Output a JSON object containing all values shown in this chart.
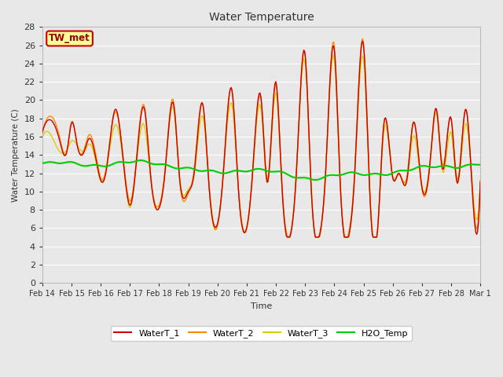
{
  "title": "Water Temperature",
  "ylabel": "Water Temperature (C)",
  "xlabel": "Time",
  "ylim": [
    0,
    28
  ],
  "yticks": [
    0,
    2,
    4,
    6,
    8,
    10,
    12,
    14,
    16,
    18,
    20,
    22,
    24,
    26,
    28
  ],
  "plot_background": "#e8e8e8",
  "grid_color": "#ffffff",
  "annotation_text": "TW_met",
  "annotation_bg": "#ffff99",
  "annotation_fg": "#990000",
  "annotation_edge": "#cc0000",
  "line_colors": {
    "WaterT_1": "#cc0000",
    "WaterT_2": "#ff8800",
    "WaterT_3": "#ddcc00",
    "H2O_Temp": "#00cc00"
  },
  "legend_entries": [
    "WaterT_1",
    "WaterT_2",
    "WaterT_3",
    "H2O_Temp"
  ],
  "x_labels": [
    "Feb 14",
    "Feb 15",
    "Feb 16",
    "Feb 17",
    "Feb 18",
    "Feb 19",
    "Feb 20",
    "Feb 21",
    "Feb 22",
    "Feb 23",
    "Feb 24",
    "Feb 25",
    "Feb 26",
    "Feb 27",
    "Feb 28",
    "Mar 1"
  ]
}
